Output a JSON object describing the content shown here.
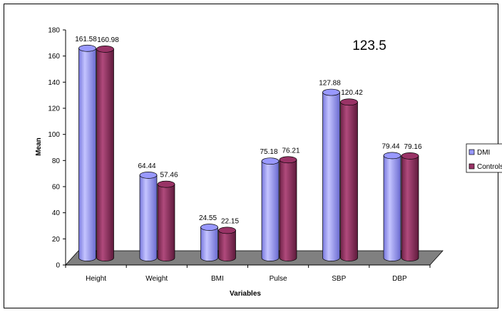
{
  "chart_data": {
    "type": "bar",
    "categories": [
      "Height",
      "Weight",
      "BMI",
      "Pulse",
      "SBP",
      "DBP"
    ],
    "series": [
      {
        "name": "DMI",
        "values": [
          161.58,
          64.44,
          24.55,
          75.18,
          127.88,
          79.44
        ],
        "labels": [
          "161.58",
          "64.44",
          "24.55",
          "75.18",
          "127.88",
          "79.44"
        ],
        "color": "#9999ff"
      },
      {
        "name": "Controls",
        "values": [
          160.98,
          57.46,
          22.15,
          76.21,
          120.42,
          79.16
        ],
        "labels": [
          "160.98",
          "57.46",
          "22.15",
          "76.21",
          "120.42",
          "79.16"
        ],
        "color": "#993366"
      }
    ],
    "xlabel": "Variables",
    "ylabel": "Mean",
    "ylim": [
      0,
      180
    ],
    "yticks": [
      "0",
      "20",
      "40",
      "60",
      "80",
      "100",
      "120",
      "140",
      "160",
      "180"
    ],
    "annotation": "123.5",
    "legend_position": "right",
    "floor_color": "#808080",
    "grid": false,
    "style": "3d-cylinder"
  }
}
